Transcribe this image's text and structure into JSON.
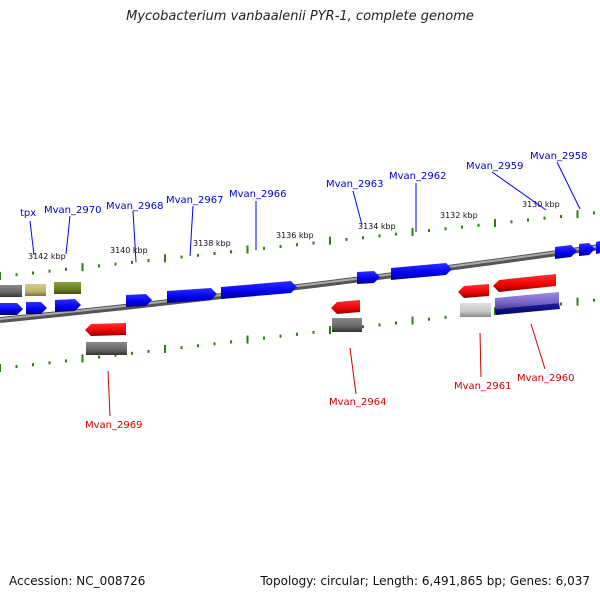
{
  "title": "Mycobacterium vanbaalenii PYR-1, complete genome",
  "footer": {
    "accession": "Accession: NC_008726",
    "summary": "Topology: circular; Length: 6,491,865 bp; Genes: 6,037"
  },
  "ticks": [
    {
      "label": "3142 kbp"
    },
    {
      "label": "3140 kbp"
    },
    {
      "label": "3138 kbp"
    },
    {
      "label": "3136 kbp"
    },
    {
      "label": "3134 kbp"
    },
    {
      "label": "3132 kbp"
    },
    {
      "label": "3130 kbp"
    }
  ],
  "gene_labels_plus": [
    "tpx",
    "Mvan_2970",
    "Mvan_2968",
    "Mvan_2967",
    "Mvan_2966",
    "Mvan_2963",
    "Mvan_2962",
    "Mvan_2959",
    "Mvan_2958"
  ],
  "gene_labels_minus": [
    "Mvan_2969",
    "Mvan_2964",
    "Mvan_2961",
    "Mvan_2960"
  ],
  "colors": {
    "plus_strand": "#0000ff",
    "minus_strand": "#ff0000",
    "label_plus": "#0000cc",
    "label_minus": "#cc0000",
    "tick": "#2e7d10",
    "backbone": "#888888"
  }
}
